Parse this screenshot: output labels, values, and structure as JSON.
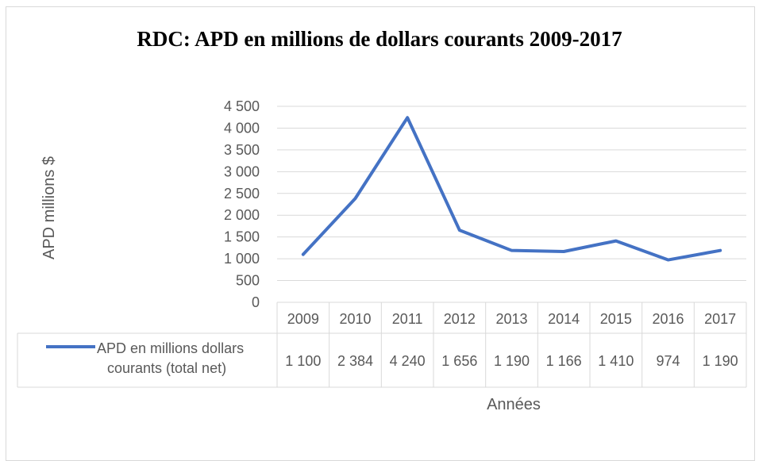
{
  "chart_data": {
    "type": "line",
    "title": "RDC: APD en  millions de dollars courants 2009-2017",
    "xlabel": "Années",
    "ylabel": "APD millions $",
    "categories": [
      "2009",
      "2010",
      "2011",
      "2012",
      "2013",
      "2014",
      "2015",
      "2016",
      "2017"
    ],
    "series": [
      {
        "name": "APD en millions dollars courants (total net)",
        "name_lines": [
          "APD en millions dollars",
          "courants (total net)"
        ],
        "values": [
          1100,
          2384,
          4240,
          1656,
          1190,
          1166,
          1410,
          974,
          1190
        ],
        "labels": [
          "1 100",
          "2 384",
          "4 240",
          "1 656",
          "1 190",
          "1 166",
          "1 410",
          "974",
          "1 190"
        ],
        "color": "#4472C4"
      }
    ],
    "yticks": [
      "0",
      "500",
      "1 000",
      "1 500",
      "2 000",
      "2 500",
      "3 000",
      "3 500",
      "4 000",
      "4 500"
    ],
    "ylim": [
      0,
      4500
    ],
    "grid": true,
    "legend": "data-table"
  }
}
